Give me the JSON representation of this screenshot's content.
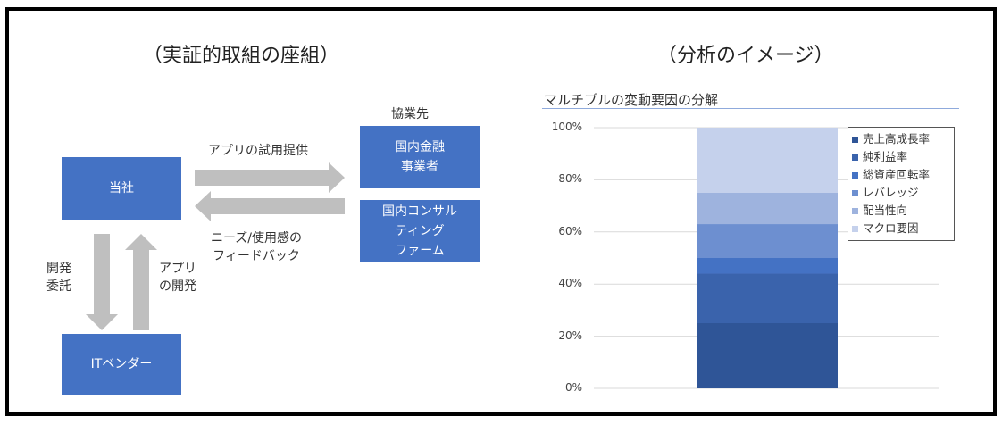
{
  "left": {
    "heading": "（実証的取組の座組）",
    "partner_label": "協業先",
    "boxes": {
      "company": "当社",
      "partner_finance": "国内金融\n事業者",
      "partner_consulting": "国内コンサル\nティング\nファーム",
      "it_vendor": "ITベンダー"
    },
    "arrow_labels": {
      "trial": "アプリの試用提供",
      "feedback": "ニーズ/使用感の\nフィードバック",
      "outsource": "開発\n委託",
      "develop": "アプリ\nの開発"
    },
    "colors": {
      "box": "#4472c4",
      "arrow": "#bfbfbf"
    }
  },
  "right": {
    "heading": "（分析のイメージ）"
  },
  "chart_data": {
    "type": "bar",
    "stacked": true,
    "title": "マルチプルの変動要因の分解",
    "categories": [
      ""
    ],
    "y_ticks": [
      "0%",
      "20%",
      "40%",
      "60%",
      "80%",
      "100%"
    ],
    "ylim": [
      0,
      100
    ],
    "grid": true,
    "legend_position": "top-right",
    "series": [
      {
        "name": "売上高成長率",
        "values": [
          25
        ],
        "color": "#2f5597"
      },
      {
        "name": "純利益率",
        "values": [
          19
        ],
        "color": "#3a63ac"
      },
      {
        "name": "総資産回転率",
        "values": [
          6
        ],
        "color": "#4472c4"
      },
      {
        "name": "レバレッジ",
        "values": [
          13
        ],
        "color": "#6d8fd0"
      },
      {
        "name": "配当性向",
        "values": [
          12
        ],
        "color": "#9eb3de"
      },
      {
        "name": "マクロ要因",
        "values": [
          25
        ],
        "color": "#c5d1ec"
      }
    ]
  }
}
